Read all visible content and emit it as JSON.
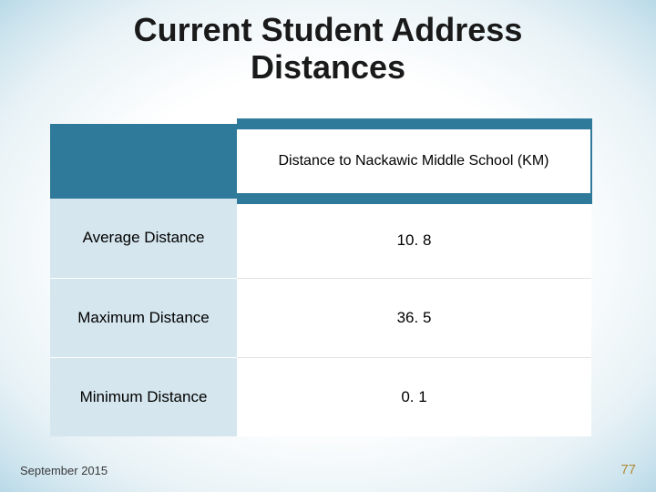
{
  "title": {
    "line1": "Current Student Address",
    "line2": "Distances",
    "fontsize": 36,
    "color": "#1a1a1a"
  },
  "table": {
    "header": {
      "left": "",
      "right": "Distance to Nackawic Middle School (KM)",
      "header_bg": "#2f7a9a",
      "header_fontsize": 16
    },
    "left_col_bg": "#d5e6ee",
    "right_col_bg": "#ffffff",
    "cell_fontsize": 17,
    "rows": [
      {
        "label": "Average Distance",
        "value": "10. 8"
      },
      {
        "label": "Maximum Distance",
        "value": "36. 5"
      },
      {
        "label": "Minimum Distance",
        "value": "0. 1"
      }
    ]
  },
  "footer": {
    "date": "September 2015",
    "date_fontsize": 13,
    "page": "77",
    "page_fontsize": 15,
    "page_color": "#b08a3a"
  },
  "background": {
    "center": "#ffffff",
    "edge": "#b8d9e8"
  }
}
